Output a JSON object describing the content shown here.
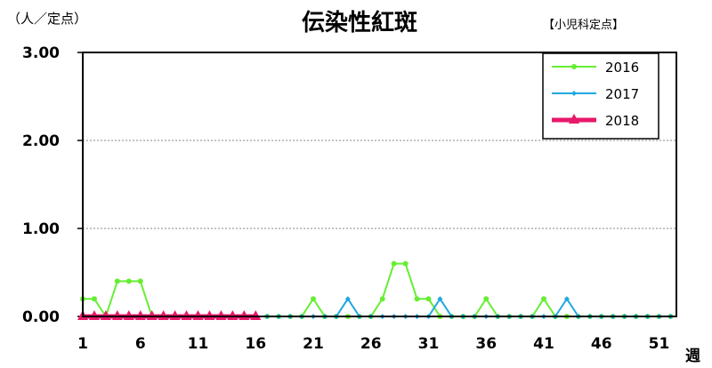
{
  "chart_data": {
    "type": "line",
    "title": "伝染性紅斑",
    "unit_label": "（人／定点）",
    "subtitle": "【小児科定点】",
    "xlabel": "週",
    "ylabel": "",
    "xlim": [
      1,
      53
    ],
    "ylim": [
      0,
      3
    ],
    "y_ticks": [
      "0.00",
      "1.00",
      "2.00",
      "3.00"
    ],
    "x_ticks": [
      "1",
      "6",
      "11",
      "16",
      "21",
      "26",
      "31",
      "36",
      "41",
      "46",
      "51"
    ],
    "grid": "horizontal dotted",
    "legend_position": "top-right",
    "series": [
      {
        "name": "2016",
        "color": "#66ee33",
        "marker": "circle",
        "x": [
          1,
          2,
          3,
          4,
          5,
          6,
          7,
          8,
          9,
          10,
          11,
          12,
          13,
          14,
          15,
          16,
          17,
          18,
          19,
          20,
          21,
          22,
          23,
          24,
          25,
          26,
          27,
          28,
          29,
          30,
          31,
          32,
          33,
          34,
          35,
          36,
          37,
          38,
          39,
          40,
          41,
          42,
          43,
          44,
          45,
          46,
          47,
          48,
          49,
          50,
          51,
          52
        ],
        "values": [
          0.2,
          0.2,
          0,
          0.4,
          0.4,
          0.4,
          0,
          0,
          0,
          0,
          0,
          0,
          0,
          0,
          0,
          0,
          0,
          0,
          0,
          0,
          0.2,
          0,
          0,
          0,
          0,
          0,
          0.2,
          0.6,
          0.6,
          0.2,
          0.2,
          0,
          0,
          0,
          0,
          0.2,
          0,
          0,
          0,
          0,
          0.2,
          0,
          0,
          0,
          0,
          0,
          0,
          0,
          0,
          0,
          0,
          0
        ]
      },
      {
        "name": "2017",
        "color": "#1fa8e0",
        "marker": "diamond",
        "x": [
          1,
          2,
          3,
          4,
          5,
          6,
          7,
          8,
          9,
          10,
          11,
          12,
          13,
          14,
          15,
          16,
          17,
          18,
          19,
          20,
          21,
          22,
          23,
          24,
          25,
          26,
          27,
          28,
          29,
          30,
          31,
          32,
          33,
          34,
          35,
          36,
          37,
          38,
          39,
          40,
          41,
          42,
          43,
          44,
          45,
          46,
          47,
          48,
          49,
          50,
          51,
          52
        ],
        "values": [
          0,
          0,
          0,
          0,
          0,
          0,
          0,
          0,
          0,
          0,
          0,
          0,
          0,
          0,
          0,
          0,
          0,
          0,
          0,
          0,
          0,
          0,
          0,
          0.2,
          0,
          0,
          0,
          0,
          0,
          0,
          0,
          0.2,
          0,
          0,
          0,
          0,
          0,
          0,
          0,
          0,
          0,
          0,
          0.2,
          0,
          0,
          0,
          0,
          0,
          0,
          0,
          0,
          0
        ]
      },
      {
        "name": "2018",
        "color": "#e8186a",
        "marker": "triangle",
        "x": [
          1,
          2,
          3,
          4,
          5,
          6,
          7,
          8,
          9,
          10,
          11,
          12,
          13,
          14,
          15,
          16
        ],
        "values": [
          0,
          0,
          0,
          0,
          0,
          0,
          0,
          0,
          0,
          0,
          0,
          0,
          0,
          0,
          0,
          0
        ]
      }
    ]
  }
}
